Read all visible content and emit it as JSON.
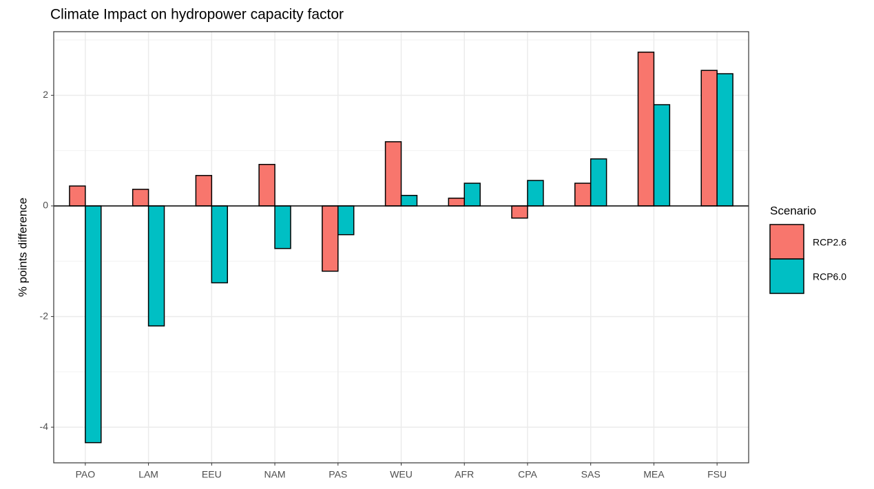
{
  "chart_data": {
    "type": "bar",
    "title": "Climate Impact on hydropower capacity factor",
    "y_label": "% points difference",
    "categories": [
      "PAO",
      "LAM",
      "EEU",
      "NAM",
      "PAS",
      "WEU",
      "AFR",
      "CPA",
      "SAS",
      "MEA",
      "FSU"
    ],
    "series": [
      {
        "name": "RCP2.6",
        "color": "#f8766d",
        "values": [
          0.36,
          0.3,
          0.55,
          0.75,
          -1.18,
          1.16,
          0.14,
          -0.22,
          0.41,
          2.78,
          2.45
        ]
      },
      {
        "name": "RCP6.0",
        "color": "#00bfc4",
        "values": [
          -4.28,
          -2.17,
          -1.39,
          -0.77,
          -0.52,
          0.19,
          0.41,
          0.46,
          0.85,
          1.83,
          2.39
        ]
      }
    ],
    "legend_title": "Scenario",
    "legend_position": "right",
    "ylim": [
      -4.645,
      3.15
    ],
    "yticks": [
      -4,
      -2,
      0,
      2
    ],
    "minor_yticks": [
      -3,
      -1,
      1,
      3
    ],
    "hline": 0,
    "grid": true
  }
}
